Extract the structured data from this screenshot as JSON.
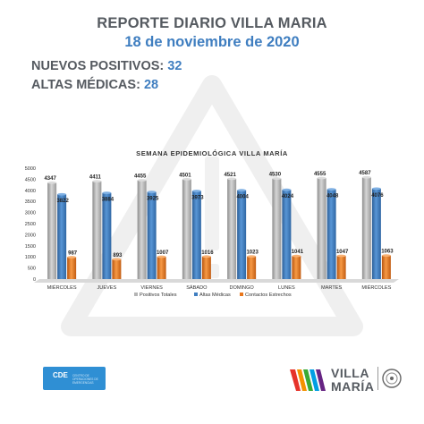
{
  "header": {
    "title": "REPORTE DIARIO VILLA MARIA",
    "date": "18 de noviembre de 2020"
  },
  "stats": {
    "new_positives_label": "NUEVOS POSITIVOS:",
    "new_positives_value": "32",
    "discharges_label": "ALTAS MÉDICAS:",
    "discharges_value": "28"
  },
  "chart_data": {
    "type": "bar",
    "title": "SEMANA EPIDEMIOLÓGICA VILLA MARÍA",
    "categories": [
      "MIÉRCOLES",
      "JUEVES",
      "VIERNES",
      "SÁBADO",
      "DOMINGO",
      "LUNES",
      "MARTES",
      "MIÉRCOLES"
    ],
    "series": [
      {
        "name": "Positivos Totales",
        "color": "#b4b4b4",
        "values": [
          4347,
          4411,
          4455,
          4501,
          4521,
          4530,
          4555,
          4587
        ]
      },
      {
        "name": "Altas Médicas",
        "color": "#3f7ec0",
        "values": [
          3822,
          3884,
          3925,
          3973,
          4004,
          4024,
          4048,
          4076
        ]
      },
      {
        "name": "Contactos Estrechos",
        "color": "#e8761b",
        "values": [
          987,
          893,
          1007,
          1016,
          1023,
          1041,
          1047,
          1063
        ]
      }
    ],
    "ylim": [
      0,
      5000
    ],
    "yticks": [
      0,
      500,
      1000,
      1500,
      2000,
      2500,
      3000,
      3500,
      4000,
      4500,
      5000
    ],
    "legend": "bottom",
    "grid": false
  },
  "footer": {
    "cde_label": "CDE",
    "cde_sub": "CENTRO DE OPERACIONES DE EMERGENCIAS",
    "brand_line1": "VILLA",
    "brand_line2": "MARÍA"
  }
}
